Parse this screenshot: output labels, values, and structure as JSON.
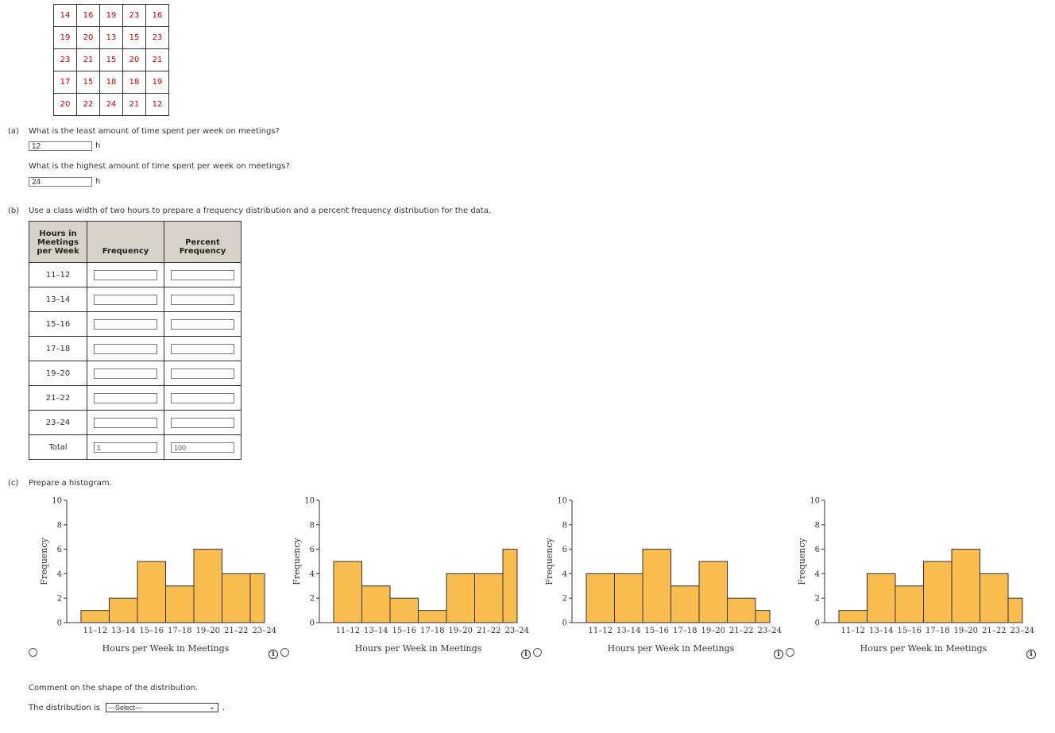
{
  "data_grid": [
    [
      "14",
      "16",
      "19",
      "23",
      "16"
    ],
    [
      "19",
      "20",
      "13",
      "15",
      "23"
    ],
    [
      "23",
      "21",
      "15",
      "20",
      "21"
    ],
    [
      "17",
      "15",
      "18",
      "18",
      "19"
    ],
    [
      "20",
      "22",
      "24",
      "21",
      "12"
    ]
  ],
  "part_a": {
    "tag": "(a)",
    "q1": "What is the least amount of time spent per week on meetings?",
    "a1": "12",
    "unit1": "h",
    "q2": "What is the highest amount of time spent per week on meetings?",
    "a2": "24",
    "unit2": "h"
  },
  "part_b": {
    "tag": "(b)",
    "instruction": "Use a class width of two hours to prepare a frequency distribution and a percent frequency distribution for the data.",
    "table": {
      "col1": "Hours in Meetings per Week",
      "col2": "Frequency",
      "col3": "Percent Frequency",
      "rows": [
        "11–12",
        "13–14",
        "15–16",
        "17–18",
        "19–20",
        "21–22",
        "23–24"
      ],
      "total_label": "Total",
      "total_freq": "1",
      "total_pct": "100"
    }
  },
  "part_c": {
    "tag": "(c)",
    "instruction": "Prepare a histogram.",
    "comment": "Comment on the shape of the distribution.",
    "distribution_label": "The distribution is",
    "select_value": "---Select---",
    "select_period": "."
  },
  "chart_data": [
    {
      "type": "bar",
      "categories": [
        "11–12",
        "13–14",
        "15–16",
        "17–18",
        "19–20",
        "21–22",
        "23–24"
      ],
      "values": [
        1,
        2,
        5,
        3,
        6,
        4,
        4
      ],
      "xlabel": "Hours per Week in Meetings",
      "ylabel": "Frequency",
      "ylim": [
        0,
        10
      ],
      "yticks": [
        0,
        2,
        4,
        6,
        8,
        10
      ],
      "color": "#f9bc50"
    },
    {
      "type": "bar",
      "categories": [
        "11–12",
        "13–14",
        "15–16",
        "17–18",
        "19–20",
        "21–22",
        "23–24"
      ],
      "values": [
        5,
        3,
        2,
        1,
        4,
        4,
        6
      ],
      "xlabel": "Hours per Week in Meetings",
      "ylabel": "Frequency",
      "ylim": [
        0,
        10
      ],
      "yticks": [
        0,
        2,
        4,
        6,
        8,
        10
      ],
      "color": "#f9bc50"
    },
    {
      "type": "bar",
      "categories": [
        "11–12",
        "13–14",
        "15–16",
        "17–18",
        "19–20",
        "21–22",
        "23–24"
      ],
      "values": [
        4,
        4,
        6,
        3,
        5,
        2,
        1
      ],
      "xlabel": "Hours per Week in Meetings",
      "ylabel": "Frequency",
      "ylim": [
        0,
        10
      ],
      "yticks": [
        0,
        2,
        4,
        6,
        8,
        10
      ],
      "color": "#f9bc50"
    },
    {
      "type": "bar",
      "categories": [
        "11–12",
        "13–14",
        "15–16",
        "17–18",
        "19–20",
        "21–22",
        "23–24"
      ],
      "values": [
        1,
        4,
        3,
        5,
        6,
        4,
        2
      ],
      "xlabel": "Hours per Week in Meetings",
      "ylabel": "Frequency",
      "ylim": [
        0,
        10
      ],
      "yticks": [
        0,
        2,
        4,
        6,
        8,
        10
      ],
      "color": "#f9bc50"
    }
  ]
}
